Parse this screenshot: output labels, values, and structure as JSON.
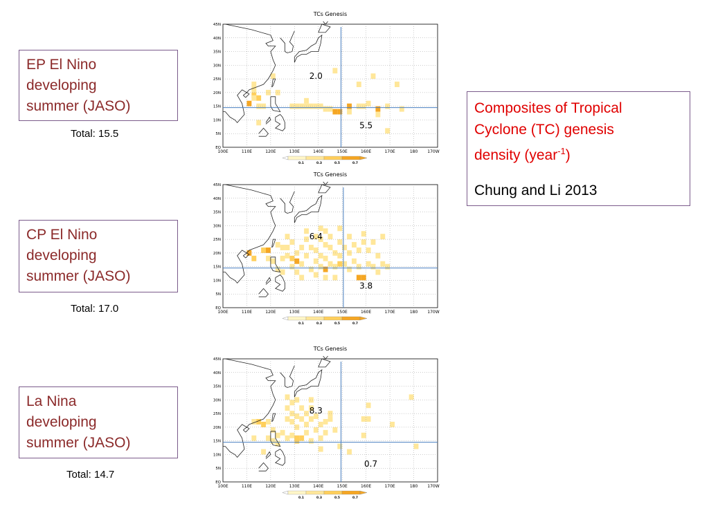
{
  "panels": [
    {
      "label": [
        "EP El Nino",
        "developing",
        "summer (JASO)"
      ],
      "total": "Total: 15.5",
      "chart_title": "TCs  Genesis",
      "annotations": [
        "2.0",
        "5.5"
      ],
      "cells": [
        [
          112,
          22,
          1
        ],
        [
          112,
          20,
          1
        ],
        [
          112,
          18,
          2
        ],
        [
          112,
          17,
          1
        ],
        [
          110,
          15,
          3
        ],
        [
          114,
          17,
          2
        ],
        [
          114,
          14,
          1
        ],
        [
          116,
          14,
          1
        ],
        [
          118,
          19,
          1
        ],
        [
          122,
          19,
          1
        ],
        [
          120,
          25,
          1
        ],
        [
          128,
          14,
          1
        ],
        [
          130,
          14,
          1
        ],
        [
          132,
          14,
          1
        ],
        [
          134,
          14,
          1
        ],
        [
          136,
          14,
          1
        ],
        [
          138,
          14,
          1
        ],
        [
          134,
          16,
          1
        ],
        [
          140,
          14,
          1
        ],
        [
          142,
          13,
          1
        ],
        [
          144,
          13,
          1
        ],
        [
          146,
          12,
          3
        ],
        [
          148,
          12,
          3
        ],
        [
          146,
          27,
          1
        ],
        [
          152,
          14,
          3
        ],
        [
          152,
          12,
          1
        ],
        [
          156,
          14,
          1
        ],
        [
          158,
          14,
          1
        ],
        [
          156,
          22,
          1
        ],
        [
          160,
          15,
          1
        ],
        [
          162,
          25,
          1
        ],
        [
          164,
          13,
          3
        ],
        [
          164,
          11,
          1
        ],
        [
          168,
          14,
          1
        ],
        [
          168,
          5,
          1
        ],
        [
          172,
          22,
          1
        ],
        [
          174,
          13,
          1
        ],
        [
          114,
          8,
          1
        ]
      ],
      "vline": 149.5,
      "hline": 14.5
    },
    {
      "label": [
        "CP El Nino",
        "developing",
        "summer (JASO)"
      ],
      "total": "Total: 17.0",
      "chart_title": "TCs  Genesis",
      "annotations": [
        "6.4",
        "3.8"
      ],
      "cells": [
        [
          110,
          19,
          3
        ],
        [
          112,
          17,
          2
        ],
        [
          116,
          20,
          2
        ],
        [
          118,
          20,
          3
        ],
        [
          118,
          17,
          1
        ],
        [
          120,
          16,
          1
        ],
        [
          122,
          13,
          1
        ],
        [
          122,
          22,
          1
        ],
        [
          124,
          21,
          1
        ],
        [
          124,
          17,
          1
        ],
        [
          126,
          25,
          1
        ],
        [
          126,
          21,
          1
        ],
        [
          126,
          18,
          1
        ],
        [
          128,
          23,
          1
        ],
        [
          128,
          17,
          2
        ],
        [
          128,
          14,
          1
        ],
        [
          130,
          19,
          1
        ],
        [
          130,
          16,
          3
        ],
        [
          130,
          12,
          1
        ],
        [
          132,
          21,
          1
        ],
        [
          132,
          15,
          1
        ],
        [
          132,
          10,
          1
        ],
        [
          134,
          27,
          1
        ],
        [
          134,
          24,
          1
        ],
        [
          134,
          18,
          1
        ],
        [
          136,
          21,
          1
        ],
        [
          136,
          13,
          1
        ],
        [
          138,
          25,
          1
        ],
        [
          138,
          20,
          1
        ],
        [
          138,
          16,
          1
        ],
        [
          138,
          11,
          1
        ],
        [
          140,
          28,
          1
        ],
        [
          140,
          24,
          1
        ],
        [
          140,
          18,
          1
        ],
        [
          140,
          14,
          1
        ],
        [
          142,
          27,
          1
        ],
        [
          142,
          22,
          1
        ],
        [
          142,
          17,
          1
        ],
        [
          142,
          13,
          3
        ],
        [
          142,
          10,
          1
        ],
        [
          144,
          25,
          1
        ],
        [
          144,
          21,
          1
        ],
        [
          144,
          15,
          1
        ],
        [
          146,
          19,
          1
        ],
        [
          146,
          14,
          1
        ],
        [
          146,
          10,
          1
        ],
        [
          148,
          28,
          1
        ],
        [
          148,
          23,
          1
        ],
        [
          148,
          18,
          1
        ],
        [
          148,
          15,
          2
        ],
        [
          150,
          21,
          1
        ],
        [
          150,
          15,
          1
        ],
        [
          152,
          25,
          1
        ],
        [
          152,
          19,
          1
        ],
        [
          152,
          13,
          1
        ],
        [
          154,
          22,
          1
        ],
        [
          154,
          16,
          1
        ],
        [
          156,
          20,
          1
        ],
        [
          156,
          14,
          1
        ],
        [
          156,
          10,
          3
        ],
        [
          158,
          26,
          1
        ],
        [
          158,
          23,
          1
        ],
        [
          158,
          10,
          3
        ],
        [
          160,
          20,
          1
        ],
        [
          160,
          15,
          1
        ],
        [
          162,
          23,
          1
        ],
        [
          162,
          14,
          1
        ],
        [
          164,
          18,
          1
        ],
        [
          164,
          12,
          1
        ],
        [
          166,
          25,
          1
        ],
        [
          166,
          15,
          1
        ],
        [
          168,
          14,
          1
        ],
        [
          124,
          12,
          1
        ]
      ],
      "vline": 150.5,
      "hline": 14.5
    },
    {
      "label": [
        "La Nina",
        "developing",
        "summer (JASO)"
      ],
      "total": "Total: 14.7",
      "chart_title": "TCs  Genesis",
      "annotations": [
        "8.3",
        "0.7"
      ],
      "cells": [
        [
          112,
          21,
          1
        ],
        [
          114,
          21,
          2
        ],
        [
          116,
          20,
          2
        ],
        [
          118,
          21,
          1
        ],
        [
          118,
          15,
          1
        ],
        [
          120,
          18,
          1
        ],
        [
          120,
          14,
          1
        ],
        [
          122,
          16,
          1
        ],
        [
          122,
          13,
          1
        ],
        [
          124,
          17,
          1
        ],
        [
          126,
          30,
          1
        ],
        [
          126,
          26,
          1
        ],
        [
          126,
          22,
          1
        ],
        [
          126,
          15,
          1
        ],
        [
          128,
          28,
          1
        ],
        [
          128,
          24,
          1
        ],
        [
          128,
          21,
          1
        ],
        [
          128,
          16,
          1
        ],
        [
          130,
          29,
          1
        ],
        [
          130,
          23,
          1
        ],
        [
          130,
          19,
          1
        ],
        [
          130,
          15,
          2
        ],
        [
          130,
          14,
          2
        ],
        [
          132,
          26,
          1
        ],
        [
          132,
          22,
          1
        ],
        [
          132,
          15,
          2
        ],
        [
          134,
          24,
          1
        ],
        [
          134,
          20,
          1
        ],
        [
          134,
          17,
          1
        ],
        [
          136,
          29,
          1
        ],
        [
          136,
          26,
          1
        ],
        [
          136,
          22,
          1
        ],
        [
          136,
          14,
          1
        ],
        [
          138,
          23,
          1
        ],
        [
          138,
          18,
          1
        ],
        [
          140,
          20,
          1
        ],
        [
          140,
          15,
          1
        ],
        [
          140,
          11,
          1
        ],
        [
          142,
          21,
          1
        ],
        [
          142,
          17,
          1
        ],
        [
          144,
          24,
          1
        ],
        [
          144,
          22,
          1
        ],
        [
          146,
          18,
          1
        ],
        [
          148,
          12,
          1
        ],
        [
          152,
          10,
          1
        ],
        [
          158,
          22,
          1
        ],
        [
          158,
          16,
          1
        ],
        [
          160,
          22,
          1
        ],
        [
          160,
          27,
          1
        ],
        [
          170,
          20,
          1
        ],
        [
          178,
          30,
          1
        ],
        [
          180,
          12,
          1
        ],
        [
          112,
          15,
          1
        ],
        [
          116,
          10,
          1
        ]
      ],
      "vline": 149.5,
      "hline": 14.5
    }
  ],
  "colorbar": {
    "ticks": [
      "0.1",
      "0.3",
      "0.5",
      "0.7"
    ],
    "colors": [
      "#fff6c8",
      "#ffe79a",
      "#ffcf5c",
      "#f5a623"
    ]
  },
  "axes": {
    "lat_labels": [
      "45N",
      "40N",
      "35N",
      "30N",
      "25N",
      "20N",
      "15N",
      "10N",
      "5N",
      "EQ"
    ],
    "lon_labels": [
      "100E",
      "110E",
      "120E",
      "130E",
      "140E",
      "150E",
      "160E",
      "170E",
      "180",
      "170W"
    ]
  },
  "info": {
    "title_lines": [
      "Composites of Tropical",
      "Cyclone (TC) genesis",
      "density (year"
    ],
    "superscript": "-1",
    "title_end": ")",
    "citation": "Chung and Li 2013"
  },
  "chart_data": [
    {
      "type": "heatmap",
      "title": "TCs  Genesis",
      "x_range": [
        "100E",
        "170W"
      ],
      "y_range": [
        "EQ",
        "45N"
      ],
      "annotations": [
        {
          "text": "2.0"
        },
        {
          "text": "5.5"
        }
      ],
      "colorbar_ticks": [
        0.1,
        0.3,
        0.5,
        0.7
      ]
    },
    {
      "type": "heatmap",
      "title": "TCs  Genesis",
      "x_range": [
        "100E",
        "170W"
      ],
      "y_range": [
        "EQ",
        "45N"
      ],
      "annotations": [
        {
          "text": "6.4"
        },
        {
          "text": "3.8"
        }
      ],
      "colorbar_ticks": [
        0.1,
        0.3,
        0.5,
        0.7
      ]
    },
    {
      "type": "heatmap",
      "title": "TCs  Genesis",
      "x_range": [
        "100E",
        "170W"
      ],
      "y_range": [
        "EQ",
        "45N"
      ],
      "annotations": [
        {
          "text": "8.3"
        },
        {
          "text": "0.7"
        }
      ],
      "colorbar_ticks": [
        0.1,
        0.3,
        0.5,
        0.7
      ]
    }
  ]
}
